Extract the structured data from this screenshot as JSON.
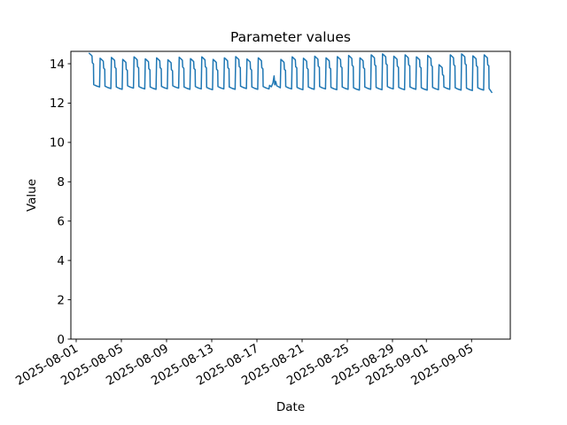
{
  "chart_data": {
    "type": "line",
    "title": "Parameter values",
    "xlabel": "Date",
    "ylabel": "Value",
    "background_color": "#ffffff",
    "line_color": "#1f77b4",
    "axis_color": "#000000",
    "grid": false,
    "legend": null,
    "ylim": [
      0,
      14.63
    ],
    "y_ticks": [
      0,
      2,
      4,
      6,
      8,
      10,
      12,
      14
    ],
    "xlim_days": [
      -0.47,
      38.43
    ],
    "x_ticks": [
      {
        "label": "2025-08-01",
        "day_offset": 0
      },
      {
        "label": "2025-08-05",
        "day_offset": 4
      },
      {
        "label": "2025-08-09",
        "day_offset": 8
      },
      {
        "label": "2025-08-13",
        "day_offset": 12
      },
      {
        "label": "2025-08-17",
        "day_offset": 16
      },
      {
        "label": "2025-08-21",
        "day_offset": 20
      },
      {
        "label": "2025-08-25",
        "day_offset": 24
      },
      {
        "label": "2025-08-29",
        "day_offset": 28
      },
      {
        "label": "2025-09-01",
        "day_offset": 31
      },
      {
        "label": "2025-09-05",
        "day_offset": 35
      }
    ],
    "x_tick_rotation_deg": 30,
    "series": {
      "name": "parameter",
      "color": "#1f77b4",
      "start_day_offset": 1.08,
      "period_days": 1.0,
      "cycles": [
        {
          "peak": 14.55,
          "low": 12.82
        },
        {
          "peak": 14.28,
          "low": 12.74
        },
        {
          "peak": 14.32,
          "low": 12.7
        },
        {
          "peak": 14.22,
          "low": 12.76
        },
        {
          "peak": 14.35,
          "low": 12.72
        },
        {
          "peak": 14.25,
          "low": 12.7
        },
        {
          "peak": 14.3,
          "low": 12.73
        },
        {
          "peak": 14.2,
          "low": 12.76
        },
        {
          "peak": 14.33,
          "low": 12.7
        },
        {
          "peak": 14.26,
          "low": 12.72
        },
        {
          "peak": 14.35,
          "low": 12.68
        },
        {
          "peak": 14.22,
          "low": 12.72
        },
        {
          "peak": 14.3,
          "low": 12.7
        },
        {
          "peak": 14.36,
          "low": 12.74
        },
        {
          "peak": 14.24,
          "low": 12.7
        },
        {
          "peak": 14.3,
          "low": 12.72
        },
        {
          "peak": 13.35,
          "low": 12.78,
          "anomaly": true
        },
        {
          "peak": 14.22,
          "low": 12.72
        },
        {
          "peak": 14.35,
          "low": 12.68
        },
        {
          "peak": 14.28,
          "low": 12.7
        },
        {
          "peak": 14.38,
          "low": 12.72
        },
        {
          "peak": 14.3,
          "low": 12.68
        },
        {
          "peak": 14.36,
          "low": 12.7
        },
        {
          "peak": 14.42,
          "low": 12.66
        },
        {
          "peak": 14.3,
          "low": 12.7
        },
        {
          "peak": 14.45,
          "low": 12.68
        },
        {
          "peak": 14.5,
          "low": 12.72
        },
        {
          "peak": 14.38,
          "low": 12.68
        },
        {
          "peak": 14.45,
          "low": 12.7
        },
        {
          "peak": 14.35,
          "low": 12.66
        },
        {
          "peak": 14.42,
          "low": 12.68
        },
        {
          "peak": 13.95,
          "low": 12.7
        },
        {
          "peak": 14.45,
          "low": 12.66
        },
        {
          "peak": 14.5,
          "low": 12.64
        },
        {
          "peak": 14.4,
          "low": 12.66
        },
        {
          "peak": 14.45,
          "low": 12.62
        }
      ]
    },
    "cycle_template": [
      [
        0.04,
        "p",
        0.0
      ],
      [
        0.14,
        "p",
        -0.05
      ],
      [
        0.32,
        "p",
        -0.15
      ],
      [
        0.35,
        "p",
        -0.5
      ],
      [
        0.45,
        "p",
        -0.56
      ],
      [
        0.47,
        "l",
        0.12
      ],
      [
        0.72,
        "l",
        0.05
      ],
      [
        0.99,
        "l",
        0.0
      ]
    ],
    "anomaly_template": [
      [
        0.04,
        "l",
        0.12
      ],
      [
        0.2,
        "l",
        0.05
      ],
      [
        0.34,
        "l",
        0.25
      ],
      [
        0.44,
        "l",
        0.6
      ],
      [
        0.5,
        "l",
        0.15
      ],
      [
        0.58,
        "l",
        0.32
      ],
      [
        0.68,
        "l",
        0.1
      ],
      [
        0.99,
        "l",
        0.0
      ]
    ],
    "last_cycle_cutoff": 0.7,
    "end_tail": [
      0.74,
      "l",
      -0.1
    ]
  }
}
